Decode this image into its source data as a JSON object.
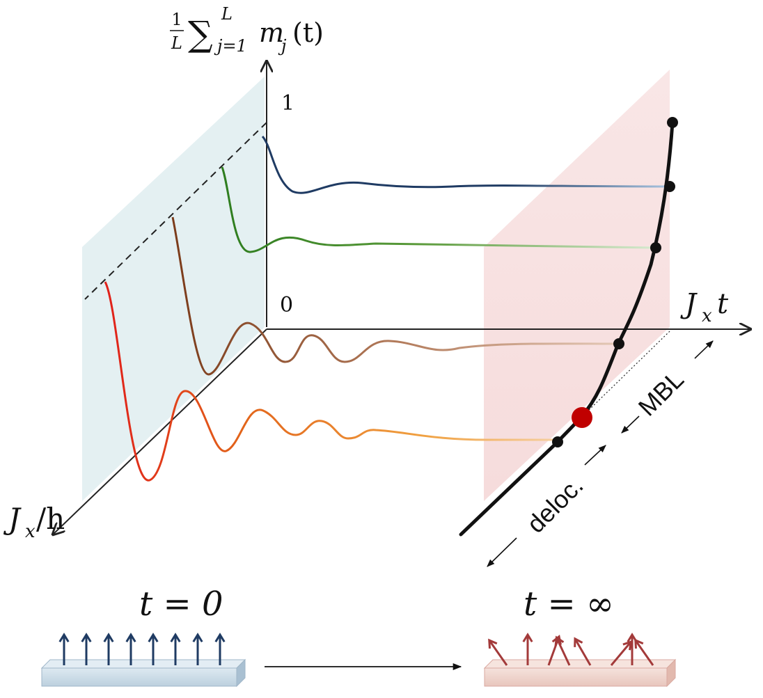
{
  "diagram": {
    "ylabel_frac": "1/L",
    "ylabel_sum": "∑",
    "ylabel_sup": "L",
    "ylabel_sub": "j=1",
    "ylabel_m": "m",
    "ylabel_msub": "j",
    "ylabel_t": "(t)",
    "xlabel": "Jxt",
    "xlabel_main": "J",
    "xlabel_sub": "x",
    "xlabel_t": "t",
    "zlabel_main": "J",
    "zlabel_sub": "x",
    "zlabel_rest": "/h",
    "tick_one": "1",
    "tick_zero": "0",
    "label_mbl": "MBL",
    "label_deloc": "deloc.",
    "label_t0": "t = 0",
    "label_tinf": "t = ∞",
    "colors": {
      "axis": "#222222",
      "left_plane": "#e4f0f2",
      "right_plane": "#f7e1e1",
      "curve_dark_blue": "#1f3b63",
      "curve_green": "#2e7d1f",
      "curve_brown": "#7b3b1a",
      "curve_orange": "#d9661a",
      "curve_red": "#e0201a",
      "critical_point": "#c00000",
      "spin_up": "#1f3b63",
      "spin_random": "#a33a3a",
      "chain_t0": "#c9dbe6",
      "chain_tinf": "#f0d6d0"
    },
    "spin_angles_tinf": [
      -35,
      0,
      20,
      -25,
      -30,
      40,
      0,
      -35
    ]
  }
}
